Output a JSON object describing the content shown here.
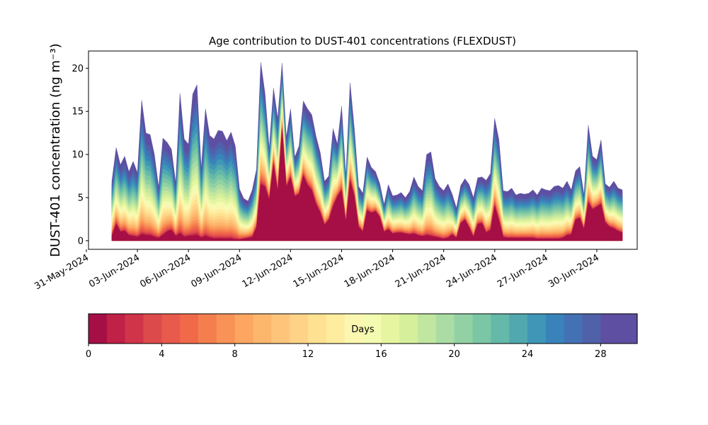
{
  "chart_data": {
    "type": "area",
    "title": "Age contribution to DUST-401 concentrations (FLEXDUST)",
    "xlabel": "",
    "ylabel": "DUST-401 concentration (ng m⁻³)",
    "ylim": [
      -1,
      22
    ],
    "xlim": [
      "2024-05-31T03:00",
      "2024-07-02T09:00"
    ],
    "y_ticks": [
      0,
      5,
      10,
      15,
      20
    ],
    "x_tick_labels": [
      "31-May-2024",
      "03-Jun-2024",
      "06-Jun-2024",
      "09-Jun-2024",
      "12-Jun-2024",
      "15-Jun-2024",
      "18-Jun-2024",
      "21-Jun-2024",
      "24-Jun-2024",
      "27-Jun-2024",
      "30-Jun-2024"
    ],
    "x_tick_dates": [
      "2024-05-31",
      "2024-06-03",
      "2024-06-06",
      "2024-06-09",
      "2024-06-12",
      "2024-06-15",
      "2024-06-18",
      "2024-06-21",
      "2024-06-24",
      "2024-06-27",
      "2024-06-30"
    ],
    "grid": false,
    "colorbar": {
      "label": "Days",
      "min": 0,
      "max": 30,
      "ticks": [
        0,
        4,
        8,
        12,
        16,
        20,
        24,
        28
      ],
      "colors": [
        "#a50f46",
        "#bf2147",
        "#d03449",
        "#dd4a4c",
        "#e85a4c",
        "#f06a49",
        "#f57e4e",
        "#f99256",
        "#fca661",
        "#fdb76d",
        "#fec57a",
        "#fed388",
        "#fee191",
        "#feed9f",
        "#fbf7b1",
        "#f3fbb0",
        "#e6f5a0",
        "#d5ef9b",
        "#c1e69f",
        "#aadca3",
        "#92d1a4",
        "#7bc6a5",
        "#65b9a8",
        "#51a8ae",
        "#3f96b6",
        "#3a83ba",
        "#4371b3",
        "#5060a9",
        "#5e4fa2",
        "#5e4fa2"
      ]
    },
    "x": [
      "2024-06-01T12:00",
      "2024-06-01T18:00",
      "2024-06-02T00:00",
      "2024-06-02T06:00",
      "2024-06-02T12:00",
      "2024-06-02T18:00",
      "2024-06-03T00:00",
      "2024-06-03T06:00",
      "2024-06-03T12:00",
      "2024-06-03T18:00",
      "2024-06-04T00:00",
      "2024-06-04T06:00",
      "2024-06-04T12:00",
      "2024-06-04T18:00",
      "2024-06-05T00:00",
      "2024-06-05T06:00",
      "2024-06-05T12:00",
      "2024-06-05T18:00",
      "2024-06-06T00:00",
      "2024-06-06T06:00",
      "2024-06-06T12:00",
      "2024-06-06T18:00",
      "2024-06-07T00:00",
      "2024-06-07T06:00",
      "2024-06-07T12:00",
      "2024-06-07T18:00",
      "2024-06-08T00:00",
      "2024-06-08T06:00",
      "2024-06-08T12:00",
      "2024-06-08T18:00",
      "2024-06-09T00:00",
      "2024-06-09T06:00",
      "2024-06-09T12:00",
      "2024-06-09T18:00",
      "2024-06-10T00:00",
      "2024-06-10T06:00",
      "2024-06-10T12:00",
      "2024-06-10T18:00",
      "2024-06-11T00:00",
      "2024-06-11T06:00",
      "2024-06-11T12:00",
      "2024-06-11T18:00",
      "2024-06-12T00:00",
      "2024-06-12T06:00",
      "2024-06-12T12:00",
      "2024-06-12T18:00",
      "2024-06-13T00:00",
      "2024-06-13T06:00",
      "2024-06-13T12:00",
      "2024-06-13T18:00",
      "2024-06-14T00:00",
      "2024-06-14T06:00",
      "2024-06-14T12:00",
      "2024-06-14T18:00",
      "2024-06-15T00:00",
      "2024-06-15T06:00",
      "2024-06-15T12:00",
      "2024-06-15T18:00",
      "2024-06-16T00:00",
      "2024-06-16T06:00",
      "2024-06-16T12:00",
      "2024-06-16T18:00",
      "2024-06-17T00:00",
      "2024-06-17T06:00",
      "2024-06-17T12:00",
      "2024-06-17T18:00",
      "2024-06-18T00:00",
      "2024-06-18T06:00",
      "2024-06-18T12:00",
      "2024-06-18T18:00",
      "2024-06-19T00:00",
      "2024-06-19T06:00",
      "2024-06-19T12:00",
      "2024-06-19T18:00",
      "2024-06-20T00:00",
      "2024-06-20T06:00",
      "2024-06-20T12:00",
      "2024-06-20T18:00",
      "2024-06-21T00:00",
      "2024-06-21T06:00",
      "2024-06-21T12:00",
      "2024-06-21T18:00",
      "2024-06-22T00:00",
      "2024-06-22T06:00",
      "2024-06-22T12:00",
      "2024-06-22T18:00",
      "2024-06-23T00:00",
      "2024-06-23T06:00",
      "2024-06-23T12:00",
      "2024-06-23T18:00",
      "2024-06-24T00:00",
      "2024-06-24T06:00",
      "2024-06-24T12:00",
      "2024-06-24T18:00",
      "2024-06-25T00:00",
      "2024-06-25T06:00",
      "2024-06-25T12:00",
      "2024-06-25T18:00",
      "2024-06-26T00:00",
      "2024-06-26T06:00",
      "2024-06-26T12:00",
      "2024-06-26T18:00",
      "2024-06-27T00:00",
      "2024-06-27T06:00",
      "2024-06-27T12:00",
      "2024-06-27T18:00",
      "2024-06-28T00:00",
      "2024-06-28T06:00",
      "2024-06-28T12:00",
      "2024-06-28T18:00",
      "2024-06-29T00:00",
      "2024-06-29T06:00",
      "2024-06-29T12:00",
      "2024-06-29T18:00",
      "2024-06-30T00:00",
      "2024-06-30T06:00",
      "2024-06-30T12:00",
      "2024-06-30T18:00",
      "2024-07-01T00:00",
      "2024-07-01T06:00",
      "2024-07-01T12:00"
    ],
    "total": [
      6.9,
      10.8,
      8.8,
      9.8,
      8.0,
      9.2,
      7.9,
      16.3,
      12.5,
      12.3,
      10.0,
      6.2,
      11.9,
      11.4,
      10.6,
      6.7,
      17.1,
      11.8,
      11.2,
      17.0,
      18.1,
      8.4,
      15.3,
      12.2,
      11.8,
      12.8,
      12.7,
      11.6,
      12.6,
      11.0,
      6.0,
      4.9,
      4.6,
      5.9,
      8.3,
      20.7,
      17.1,
      10.7,
      17.7,
      14.2,
      20.6,
      12.0,
      15.3,
      9.7,
      11.0,
      16.2,
      15.3,
      14.6,
      12.1,
      10.2,
      6.9,
      7.5,
      13.0,
      11.2,
      15.6,
      7.5,
      18.3,
      13.0,
      6.3,
      5.5,
      9.7,
      8.5,
      8.0,
      6.6,
      4.2,
      6.5,
      5.2,
      5.3,
      5.6,
      5.0,
      5.7,
      7.4,
      6.3,
      5.8,
      10.0,
      10.3,
      7.2,
      6.3,
      5.8,
      6.6,
      5.4,
      3.8,
      6.4,
      7.2,
      6.5,
      5.0,
      7.3,
      7.4,
      7.0,
      7.8,
      14.2,
      11.7,
      5.8,
      5.7,
      6.1,
      5.3,
      5.5,
      5.4,
      5.5,
      5.9,
      5.3,
      6.1,
      5.9,
      5.8,
      6.3,
      6.4,
      6.1,
      6.9,
      5.9,
      8.1,
      8.6,
      5.3,
      13.4,
      9.8,
      9.4,
      11.7,
      6.6,
      6.2,
      6.9,
      6.1,
      5.9,
      5.5
    ],
    "young": [
      0.5,
      1.9,
      1.0,
      1.1,
      0.6,
      0.5,
      0.4,
      0.7,
      0.6,
      0.6,
      0.4,
      0.3,
      0.6,
      1.0,
      1.2,
      0.5,
      0.8,
      0.4,
      0.5,
      0.5,
      0.6,
      0.3,
      0.5,
      0.3,
      0.2,
      0.2,
      0.2,
      0.2,
      0.2,
      0.1,
      0.1,
      0.2,
      0.3,
      0.4,
      1.5,
      6.5,
      6.2,
      4.7,
      8.9,
      5.6,
      12.9,
      6.2,
      7.3,
      5.1,
      5.4,
      7.5,
      6.4,
      5.8,
      4.2,
      3.2,
      1.8,
      2.4,
      3.9,
      5.1,
      5.8,
      2.1,
      6.9,
      5.1,
      1.6,
      1.0,
      3.5,
      3.2,
      3.4,
      2.7,
      1.0,
      1.3,
      0.8,
      0.9,
      0.9,
      0.8,
      0.7,
      0.8,
      0.6,
      0.5,
      0.6,
      0.5,
      0.4,
      0.3,
      0.2,
      0.3,
      0.7,
      0.3,
      2.0,
      2.4,
      1.5,
      0.4,
      1.9,
      2.0,
      0.9,
      1.2,
      4.0,
      2.3,
      0.4,
      0.3,
      0.3,
      0.3,
      0.3,
      0.3,
      0.3,
      0.3,
      0.2,
      0.2,
      0.2,
      0.2,
      0.2,
      0.2,
      0.3,
      0.6,
      0.7,
      2.4,
      2.6,
      1.3,
      4.4,
      3.6,
      3.9,
      4.2,
      2.1,
      1.6,
      1.4,
      1.1,
      0.9,
      0.8
    ]
  }
}
